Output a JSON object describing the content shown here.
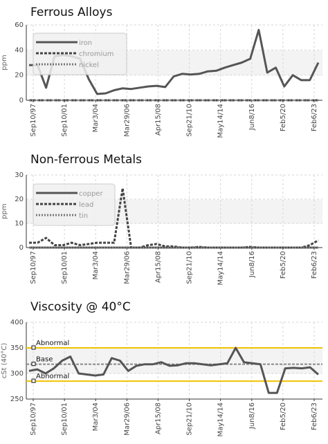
{
  "chart_data": [
    {
      "type": "line",
      "title": "Ferrous Alloys",
      "ylabel": "ppm",
      "ylim": [
        0,
        60
      ],
      "yticks": [
        0,
        20,
        40,
        60
      ],
      "x_tick_labels": [
        "Sep10/97",
        "Sep10/01",
        "Mar3/04",
        "Mar29/06",
        "Apr15/08",
        "Sep21/10",
        "May14/14",
        "Jun8/16",
        "Feb5/20",
        "Feb6/23"
      ],
      "legend_position": "top-left",
      "grid": true,
      "series": [
        {
          "name": "iron",
          "style": "solid",
          "color": "#555555",
          "values": [
            28,
            28,
            10,
            35,
            36,
            35,
            33,
            17,
            5,
            5.5,
            8,
            9.5,
            9,
            10,
            11,
            11.5,
            10.5,
            19,
            21,
            20.5,
            21,
            23,
            23.5,
            26,
            28,
            30,
            33,
            56,
            22,
            26,
            11,
            20,
            16,
            16,
            30
          ]
        },
        {
          "name": "chromium",
          "style": "dashed",
          "color": "#444444",
          "values": [
            0,
            0,
            0,
            0,
            0,
            0,
            0,
            0,
            0,
            0,
            0,
            0,
            0,
            0,
            0,
            0,
            0,
            0,
            0,
            0,
            0,
            0,
            0,
            0,
            0,
            0,
            0,
            0,
            0,
            0,
            0,
            0,
            0,
            0,
            0
          ]
        },
        {
          "name": "nickel",
          "style": "dotted",
          "color": "#777777",
          "values": [
            0,
            0,
            0,
            0,
            0,
            0,
            0,
            0,
            0,
            0,
            0,
            0,
            0,
            0,
            0,
            0,
            0,
            0,
            0,
            0,
            0,
            0,
            0,
            0,
            0,
            0,
            0,
            0,
            0,
            0,
            0,
            0,
            0,
            0,
            0
          ]
        }
      ]
    },
    {
      "type": "line",
      "title": "Non-ferrous Metals",
      "ylabel": "ppm",
      "ylim": [
        0,
        30
      ],
      "yticks": [
        0,
        10,
        20,
        30
      ],
      "x_tick_labels": [
        "Sep10/97",
        "Sep10/01",
        "Mar3/04",
        "Mar29/06",
        "Apr15/08",
        "Sep21/10",
        "May14/14",
        "Jun8/16",
        "Feb5/20",
        "Feb6/23"
      ],
      "legend_position": "top-left",
      "grid": true,
      "series": [
        {
          "name": "copper",
          "style": "solid",
          "color": "#555555",
          "values": [
            0,
            0,
            0,
            0,
            0,
            0,
            0,
            0,
            0,
            0,
            0,
            0,
            0,
            0,
            0,
            0,
            0,
            0,
            0,
            0,
            0,
            0,
            0,
            0,
            0,
            0,
            0,
            0,
            0,
            0,
            0,
            0,
            0,
            0,
            0
          ]
        },
        {
          "name": "lead",
          "style": "dashed",
          "color": "#444444",
          "values": [
            2,
            2,
            4,
            1,
            1,
            2,
            1,
            1.5,
            2,
            2,
            2,
            24.5,
            0,
            0,
            1,
            1.5,
            0.5,
            0.5,
            0,
            0,
            0.3,
            0,
            0,
            0,
            0,
            0,
            0.3,
            0,
            0,
            0,
            0,
            0,
            0,
            1,
            3
          ]
        },
        {
          "name": "tin",
          "style": "dotted",
          "color": "#777777",
          "values": [
            0,
            0,
            0,
            0,
            0,
            0,
            0,
            0,
            0,
            0,
            0,
            0,
            0,
            0,
            0,
            0,
            0,
            0,
            0,
            0,
            0,
            0,
            0,
            0,
            0,
            0,
            0,
            0,
            0,
            0,
            0,
            0,
            0,
            0,
            0
          ]
        }
      ]
    },
    {
      "type": "line",
      "title": "Viscosity @ 40°C",
      "ylabel": "cSt (40°C)",
      "ylim": [
        250,
        400
      ],
      "yticks": [
        250,
        300,
        350,
        400
      ],
      "x_tick_labels": [
        "Sep10/97",
        "Sep10/01",
        "Mar3/04",
        "Mar29/06",
        "Apr15/08",
        "Sep21/10",
        "May14/14",
        "Jun8/16",
        "Feb5/20",
        "Feb6/23"
      ],
      "grid": true,
      "reference_lines": [
        {
          "label": "Abnormal",
          "value": 350,
          "color": "#f2c200"
        },
        {
          "label": "Base",
          "value": 318,
          "color": "#888888",
          "style": "dashed"
        },
        {
          "label": "Abnormal",
          "value": 285,
          "color": "#f2c200"
        }
      ],
      "series": [
        {
          "name": "viscosity",
          "style": "solid",
          "color": "#555555",
          "values": [
            305,
            308,
            300,
            310,
            325,
            333,
            300,
            298,
            296,
            298,
            330,
            325,
            305,
            315,
            318,
            318,
            322,
            315,
            316,
            320,
            320,
            318,
            316,
            318,
            320,
            350,
            322,
            320,
            318,
            262,
            262,
            310,
            311,
            310,
            312,
            298
          ]
        }
      ]
    }
  ]
}
